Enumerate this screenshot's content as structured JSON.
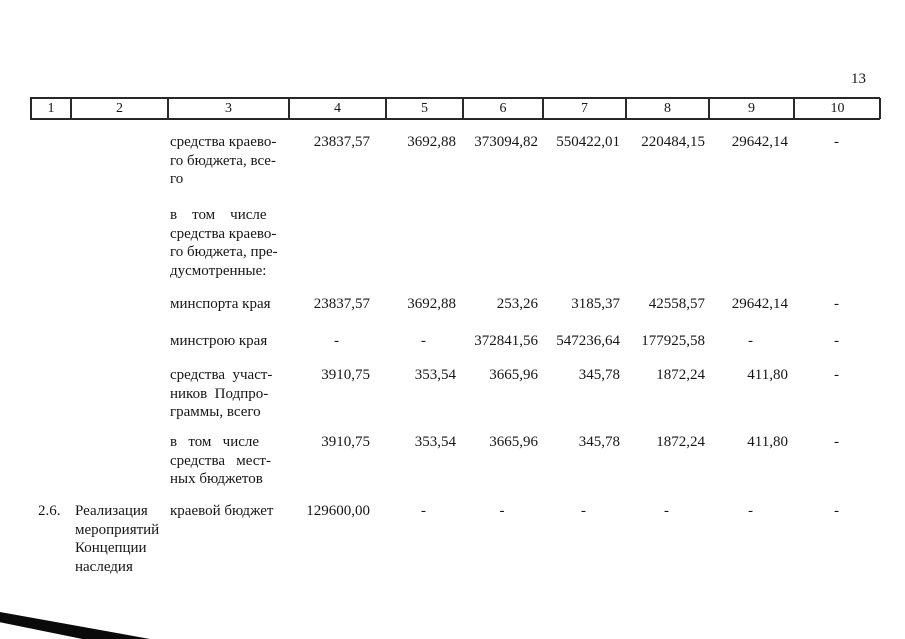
{
  "page": {
    "number": "13"
  },
  "table": {
    "header_columns": [
      "1",
      "2",
      "3",
      "4",
      "5",
      "6",
      "7",
      "8",
      "9",
      "10"
    ],
    "rows": [
      {
        "num": "",
        "activity": "",
        "funding": "средства краево-\nго бюджета, все-\nго",
        "values": [
          "23837,57",
          "3692,88",
          "373094,82",
          "550422,01",
          "220484,15",
          "29642,14",
          "-"
        ]
      },
      {
        "num": "",
        "activity": "",
        "funding": "в    том    числе\nсредства краево-\nго бюджета, пре-\nдусмотренные:"
      },
      {
        "num": "",
        "activity": "",
        "funding": "минспорта края",
        "values": [
          "23837,57",
          "3692,88",
          "253,26",
          "3185,37",
          "42558,57",
          "29642,14",
          "-"
        ]
      },
      {
        "num": "",
        "activity": "",
        "funding": "минстрою края",
        "values": [
          "-",
          "-",
          "372841,56",
          "547236,64",
          "177925,58",
          "-",
          "-"
        ]
      },
      {
        "num": "",
        "activity": "",
        "funding": "средства  участ-\nников  Подпро-\nграммы, всего",
        "values": [
          "3910,75",
          "353,54",
          "3665,96",
          "345,78",
          "1872,24",
          "411,80",
          "-"
        ]
      },
      {
        "num": "",
        "activity": "",
        "funding": "в   том   числе\nсредства   мест-\nных бюджетов",
        "values": [
          "3910,75",
          "353,54",
          "3665,96",
          "345,78",
          "1872,24",
          "411,80",
          "-"
        ]
      },
      {
        "num": "2.6.",
        "activity": "Реализация\nмероприятий\nКонцепции\nнаследия",
        "funding": "краевой бюджет",
        "values": [
          "129600,00",
          "-",
          "-",
          "-",
          "-",
          "-",
          "-"
        ]
      }
    ]
  }
}
